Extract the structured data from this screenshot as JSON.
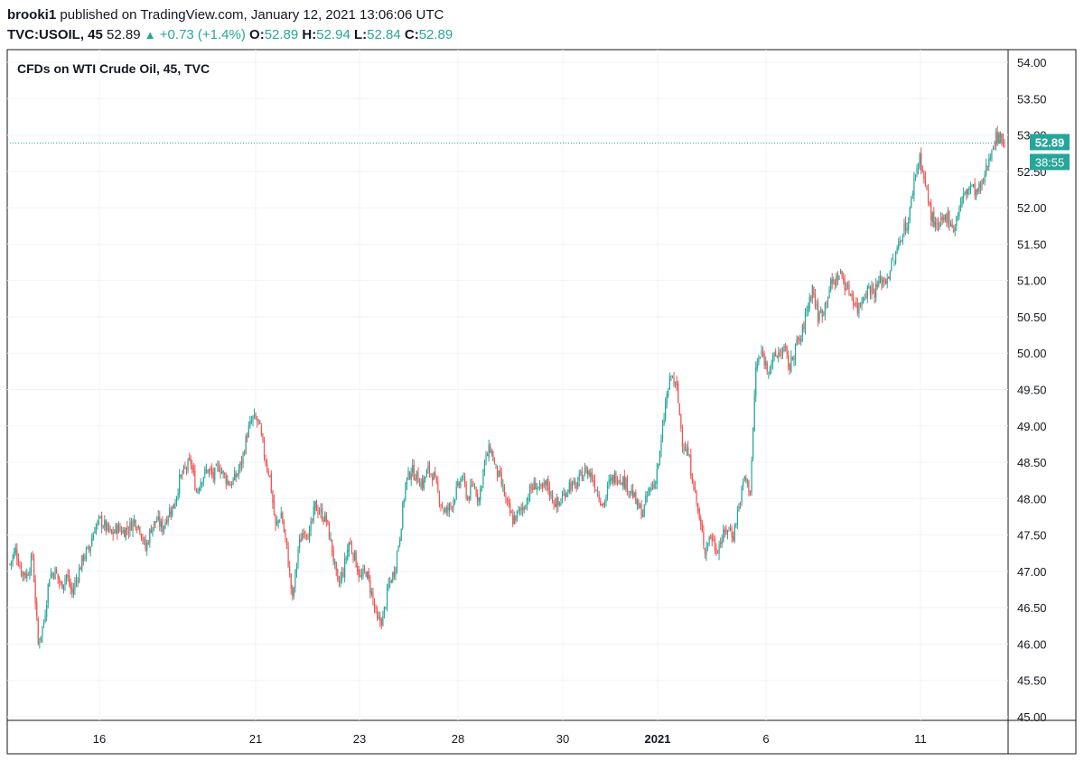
{
  "header": {
    "user": "brooki1",
    "published": "published on TradingView.com, January 12, 2021 13:06:06 UTC",
    "symbol": "TVC:USOIL, 45",
    "last": "52.89",
    "change": "+0.73 (+1.4%)",
    "o_label": "O:",
    "o_val": "52.89",
    "h_label": "H:",
    "h_val": "52.94",
    "l_label": "L:",
    "l_val": "52.84",
    "c_label": "C:",
    "c_val": "52.89"
  },
  "panel_title": "CFDs on WTI Crude Oil, 45, TVC",
  "price_badge": "52.89",
  "countdown_badge": "38:55",
  "colors": {
    "up": "#26a69a",
    "down": "#ef5350",
    "grid": "#f0f3fa",
    "axis_text": "#131722",
    "badge": "#26a69a"
  },
  "chart_data": {
    "type": "candlestick",
    "title": "CFDs on WTI Crude Oil, 45, TVC",
    "ylim": [
      45.0,
      54.0
    ],
    "y_ticks": [
      "54.00",
      "53.50",
      "53.00",
      "52.50",
      "52.00",
      "51.50",
      "51.00",
      "50.50",
      "50.00",
      "49.50",
      "49.00",
      "48.50",
      "48.00",
      "47.50",
      "47.00",
      "46.50",
      "46.00",
      "45.50",
      "45.00"
    ],
    "x_ticks": [
      "16",
      "21",
      "23",
      "28",
      "30",
      "2021",
      "6",
      "11"
    ],
    "last_price": 52.89,
    "close_path": [
      [
        0,
        47.1
      ],
      [
        4,
        47.3
      ],
      [
        8,
        47.0
      ],
      [
        12,
        46.95
      ],
      [
        16,
        47.2
      ],
      [
        20,
        46.0
      ],
      [
        24,
        46.3
      ],
      [
        28,
        46.95
      ],
      [
        32,
        47.0
      ],
      [
        36,
        46.8
      ],
      [
        40,
        46.95
      ],
      [
        44,
        46.7
      ],
      [
        48,
        46.95
      ],
      [
        52,
        47.2
      ],
      [
        56,
        47.3
      ],
      [
        60,
        47.6
      ],
      [
        64,
        47.7
      ],
      [
        68,
        47.6
      ],
      [
        72,
        47.5
      ],
      [
        76,
        47.6
      ],
      [
        80,
        47.55
      ],
      [
        84,
        47.6
      ],
      [
        88,
        47.7
      ],
      [
        92,
        47.6
      ],
      [
        96,
        47.3
      ],
      [
        100,
        47.6
      ],
      [
        104,
        47.7
      ],
      [
        108,
        47.6
      ],
      [
        112,
        47.8
      ],
      [
        116,
        47.9
      ],
      [
        120,
        48.25
      ],
      [
        124,
        48.4
      ],
      [
        128,
        48.5
      ],
      [
        132,
        48.1
      ],
      [
        136,
        48.3
      ],
      [
        140,
        48.4
      ],
      [
        144,
        48.3
      ],
      [
        148,
        48.45
      ],
      [
        152,
        48.3
      ],
      [
        156,
        48.2
      ],
      [
        160,
        48.3
      ],
      [
        164,
        48.5
      ],
      [
        168,
        48.9
      ],
      [
        172,
        49.1
      ],
      [
        176,
        49.05
      ],
      [
        180,
        48.6
      ],
      [
        184,
        48.3
      ],
      [
        188,
        47.6
      ],
      [
        192,
        47.8
      ],
      [
        196,
        47.3
      ],
      [
        200,
        46.6
      ],
      [
        204,
        47.3
      ],
      [
        208,
        47.6
      ],
      [
        212,
        47.5
      ],
      [
        216,
        47.9
      ],
      [
        220,
        47.8
      ],
      [
        224,
        47.7
      ],
      [
        228,
        47.3
      ],
      [
        232,
        46.8
      ],
      [
        236,
        47.0
      ],
      [
        240,
        47.4
      ],
      [
        244,
        47.2
      ],
      [
        248,
        46.9
      ],
      [
        252,
        47.0
      ],
      [
        256,
        46.7
      ],
      [
        260,
        46.3
      ],
      [
        264,
        46.35
      ],
      [
        268,
        46.8
      ],
      [
        272,
        47.0
      ],
      [
        276,
        47.5
      ],
      [
        280,
        48.2
      ],
      [
        284,
        48.4
      ],
      [
        288,
        48.3
      ],
      [
        292,
        48.2
      ],
      [
        296,
        48.4
      ],
      [
        300,
        48.3
      ],
      [
        304,
        48.0
      ],
      [
        308,
        47.8
      ],
      [
        312,
        47.9
      ],
      [
        316,
        48.1
      ],
      [
        320,
        48.3
      ],
      [
        324,
        48.0
      ],
      [
        328,
        48.2
      ],
      [
        332,
        48.0
      ],
      [
        336,
        48.5
      ],
      [
        340,
        48.7
      ],
      [
        344,
        48.4
      ],
      [
        348,
        48.2
      ],
      [
        352,
        47.9
      ],
      [
        356,
        47.7
      ],
      [
        360,
        47.8
      ],
      [
        364,
        47.9
      ],
      [
        368,
        48.1
      ],
      [
        372,
        48.2
      ],
      [
        376,
        48.1
      ],
      [
        380,
        48.2
      ],
      [
        384,
        48.0
      ],
      [
        388,
        47.9
      ],
      [
        392,
        48.05
      ],
      [
        396,
        48.2
      ],
      [
        400,
        48.15
      ],
      [
        404,
        48.3
      ],
      [
        408,
        48.4
      ],
      [
        412,
        48.3
      ],
      [
        416,
        48.1
      ],
      [
        420,
        47.9
      ],
      [
        424,
        48.2
      ],
      [
        428,
        48.3
      ],
      [
        432,
        48.3
      ],
      [
        436,
        48.2
      ],
      [
        440,
        48.1
      ],
      [
        444,
        47.9
      ],
      [
        448,
        47.8
      ],
      [
        452,
        48.1
      ],
      [
        456,
        48.2
      ],
      [
        460,
        48.6
      ],
      [
        464,
        49.3
      ],
      [
        468,
        49.7
      ],
      [
        472,
        49.5
      ],
      [
        476,
        48.8
      ],
      [
        480,
        48.6
      ],
      [
        484,
        48.2
      ],
      [
        488,
        47.7
      ],
      [
        492,
        47.3
      ],
      [
        496,
        47.5
      ],
      [
        500,
        47.3
      ],
      [
        504,
        47.45
      ],
      [
        508,
        47.6
      ],
      [
        512,
        47.5
      ],
      [
        516,
        47.9
      ],
      [
        520,
        48.3
      ],
      [
        524,
        48.1
      ],
      [
        528,
        49.8
      ],
      [
        532,
        50.0
      ],
      [
        536,
        49.8
      ],
      [
        540,
        49.9
      ],
      [
        544,
        50.0
      ],
      [
        548,
        50.05
      ],
      [
        552,
        49.8
      ],
      [
        556,
        50.1
      ],
      [
        560,
        50.2
      ],
      [
        564,
        50.6
      ],
      [
        568,
        50.9
      ],
      [
        572,
        50.5
      ],
      [
        576,
        50.6
      ],
      [
        580,
        50.9
      ],
      [
        584,
        51.0
      ],
      [
        588,
        51.1
      ],
      [
        592,
        50.9
      ],
      [
        596,
        50.8
      ],
      [
        600,
        50.6
      ],
      [
        604,
        50.8
      ],
      [
        608,
        50.9
      ],
      [
        612,
        50.85
      ],
      [
        616,
        51.0
      ],
      [
        620,
        51.0
      ],
      [
        624,
        51.2
      ],
      [
        628,
        51.4
      ],
      [
        632,
        51.7
      ],
      [
        636,
        51.8
      ],
      [
        640,
        52.4
      ],
      [
        644,
        52.7
      ],
      [
        648,
        52.3
      ],
      [
        652,
        51.9
      ],
      [
        656,
        51.7
      ],
      [
        660,
        51.8
      ],
      [
        664,
        51.9
      ],
      [
        668,
        51.7
      ],
      [
        672,
        52.0
      ],
      [
        676,
        52.2
      ],
      [
        680,
        52.3
      ],
      [
        684,
        52.2
      ],
      [
        688,
        52.3
      ],
      [
        692,
        52.6
      ],
      [
        696,
        52.9
      ],
      [
        700,
        53.0
      ],
      [
        704,
        52.89
      ]
    ]
  }
}
